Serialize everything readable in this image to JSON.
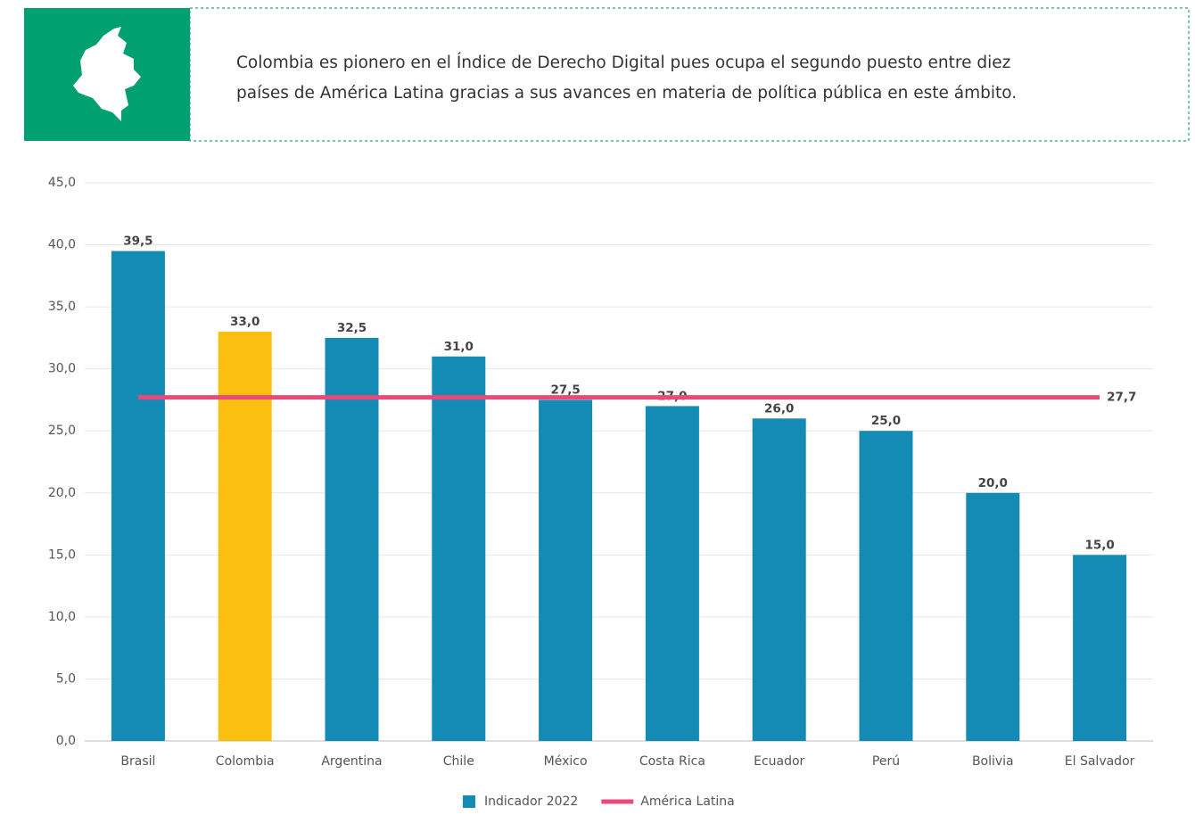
{
  "header": {
    "text_lines": [
      "Colombia es pionero en el Índice de Derecho Digital pues ocupa el segundo puesto entre diez",
      "países de América Latina gracias a sus avances en materia de política pública en este ámbito."
    ]
  },
  "chart_data": {
    "type": "bar",
    "categories": [
      "Brasil",
      "Colombia",
      "Argentina",
      "Chile",
      "México",
      "Costa Rica",
      "Ecuador",
      "Perú",
      "Bolivia",
      "El Salvador"
    ],
    "series": [
      {
        "name": "Indicador 2022",
        "type": "bar",
        "color": "#148bb5",
        "colors": [
          "#148bb5",
          "#fbbf10",
          "#148bb5",
          "#148bb5",
          "#148bb5",
          "#148bb5",
          "#148bb5",
          "#148bb5",
          "#148bb5",
          "#148bb5"
        ],
        "values": [
          39.5,
          33,
          32.5,
          31,
          27.5,
          27,
          26,
          25,
          20,
          15
        ],
        "value_labels": [
          "39,5",
          "33,0",
          "32,5",
          "31,0",
          "27,5",
          "27,0",
          "26,0",
          "25,0",
          "20,0",
          "15,0"
        ]
      },
      {
        "name": "América Latina",
        "type": "line",
        "color": "#e94a7a",
        "values": [
          27.7,
          27.7,
          27.7,
          27.7,
          27.7,
          27.7,
          27.7,
          27.7,
          27.7,
          27.7
        ],
        "value_labels": [
          null,
          null,
          null,
          null,
          null,
          null,
          null,
          null,
          null,
          "27,7"
        ]
      }
    ],
    "ylim": [
      0,
      45
    ],
    "yticks": [
      {
        "value": 0,
        "label": "0,0"
      },
      {
        "value": 5,
        "label": "5,0"
      },
      {
        "value": 10,
        "label": "10,0"
      },
      {
        "value": 15,
        "label": "15,0"
      },
      {
        "value": 20,
        "label": "20,0"
      },
      {
        "value": 25,
        "label": "25,0"
      },
      {
        "value": 30,
        "label": "30,0"
      },
      {
        "value": 35,
        "label": "35,0"
      },
      {
        "value": 40,
        "label": "40,0"
      },
      {
        "value": 45,
        "label": "45,0"
      }
    ],
    "grid": true,
    "legend": "bottom"
  }
}
